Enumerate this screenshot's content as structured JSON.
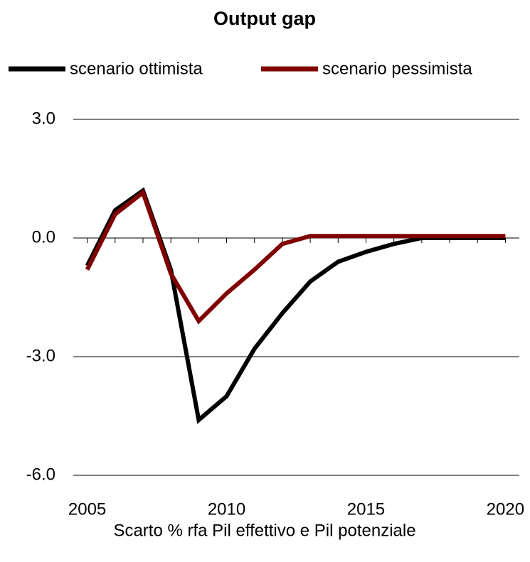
{
  "chart_data": {
    "type": "line",
    "title": "Output gap",
    "x_label": "Scarto % rfa Pil effettivo e Pil potenziale",
    "x": [
      2005,
      2006,
      2007,
      2008,
      2009,
      2010,
      2011,
      2012,
      2013,
      2014,
      2015,
      2016,
      2017,
      2018,
      2019,
      2020
    ],
    "series": [
      {
        "name": "scenario ottimista",
        "color": "#000000",
        "values": [
          -0.7,
          0.7,
          1.2,
          -0.8,
          -4.6,
          -4.0,
          -2.8,
          -1.9,
          -1.1,
          -0.6,
          -0.35,
          -0.15,
          0,
          0,
          0,
          0
        ]
      },
      {
        "name": "scenario pessimista",
        "color": "#800000",
        "values": [
          -0.8,
          0.6,
          1.15,
          -0.9,
          -2.1,
          -1.4,
          -0.8,
          -0.15,
          0.05,
          0.05,
          0.05,
          0.05,
          0.05,
          0.05,
          0.05,
          0.05
        ]
      }
    ],
    "xlim": [
      2004.5,
      2020.5
    ],
    "xticks": [
      2005,
      2010,
      2015,
      2020
    ],
    "ylim": [
      -6,
      3
    ],
    "yticks": [
      {
        "value": -6,
        "label": "-6.0"
      },
      {
        "value": -3,
        "label": "-3.0"
      },
      {
        "value": 0,
        "label": "0.0"
      },
      {
        "value": 3,
        "label": "3.0"
      }
    ],
    "grid": true,
    "legend": "top"
  }
}
